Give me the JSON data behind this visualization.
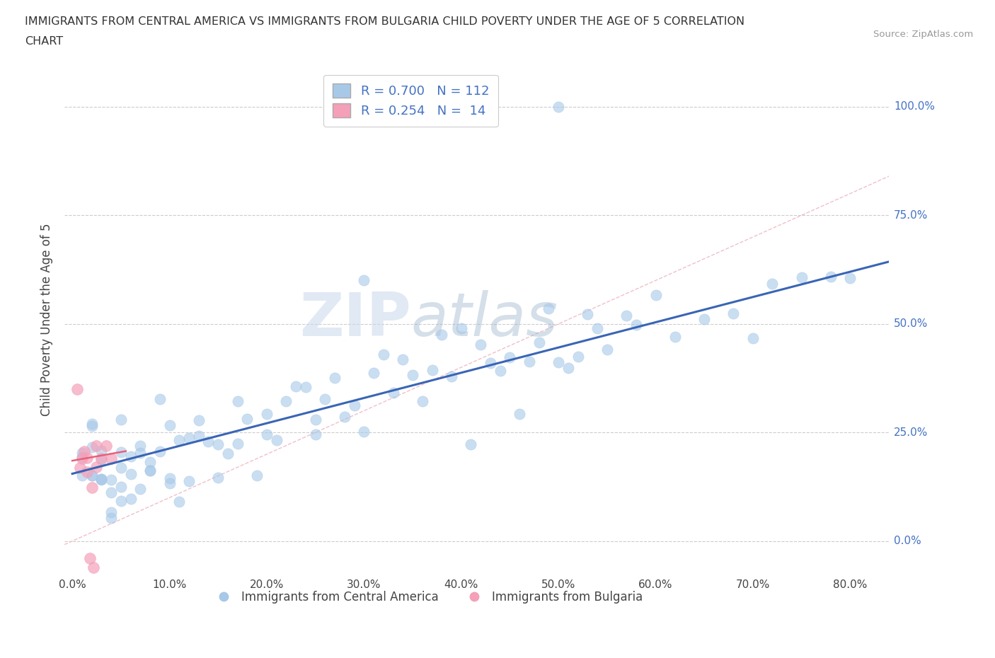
{
  "title_line1": "IMMIGRANTS FROM CENTRAL AMERICA VS IMMIGRANTS FROM BULGARIA CHILD POVERTY UNDER THE AGE OF 5 CORRELATION",
  "title_line2": "CHART",
  "source": "Source: ZipAtlas.com",
  "ylabel": "Child Poverty Under the Age of 5",
  "xlabel_ticks": [
    "0.0%",
    "10.0%",
    "20.0%",
    "30.0%",
    "40.0%",
    "50.0%",
    "60.0%",
    "70.0%",
    "80.0%"
  ],
  "ytick_labels_right": [
    "100.0%",
    "75.0%",
    "50.0%",
    "25.0%",
    "0.0%"
  ],
  "ytick_values": [
    0.0,
    0.25,
    0.5,
    0.75,
    1.0
  ],
  "xtick_values": [
    0.0,
    0.1,
    0.2,
    0.3,
    0.4,
    0.5,
    0.6,
    0.7,
    0.8
  ],
  "xmin": -0.008,
  "xmax": 0.84,
  "ymin": -0.08,
  "ymax": 1.1,
  "r_blue": 0.7,
  "n_blue": 112,
  "r_pink": 0.254,
  "n_pink": 14,
  "color_blue": "#a8c8e8",
  "color_pink": "#f4a0b8",
  "line_blue": "#3a65b5",
  "line_pink": "#e8607a",
  "diagonal_color": "#f0c0c8",
  "grid_color": "#cccccc",
  "watermark_zip": "ZIP",
  "watermark_atlas": "atlas",
  "legend_label_blue": "Immigrants from Central America",
  "legend_label_pink": "Immigrants from Bulgaria",
  "blue_line_x0": 0.0,
  "blue_line_y0": 0.155,
  "blue_line_x1": 0.8,
  "blue_line_y1": 0.62,
  "pink_line_x0": 0.0,
  "pink_line_y0": 0.185,
  "pink_line_x1": 0.05,
  "pink_line_y1": 0.205
}
